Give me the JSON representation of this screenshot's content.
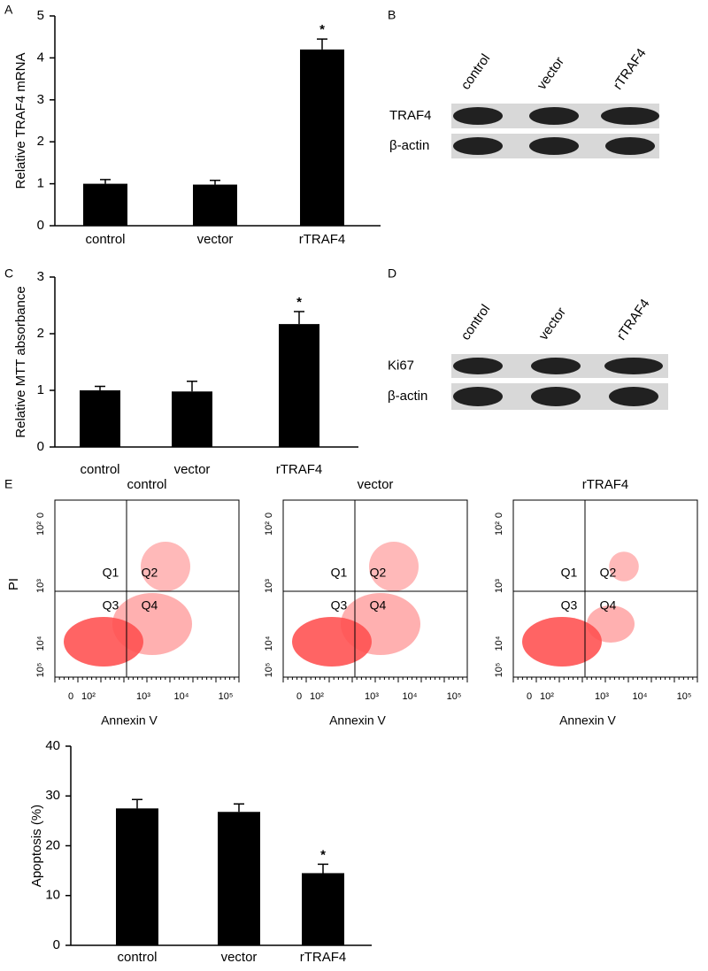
{
  "panels": [
    "A",
    "B",
    "C",
    "D",
    "E"
  ],
  "chart_data": [
    {
      "type": "bar",
      "ylabel": "Relative TRAF4 mRNA",
      "categories": [
        "control",
        "vector",
        "rTRAF4"
      ],
      "values": [
        1.0,
        0.98,
        4.2
      ],
      "errors": [
        0.1,
        0.1,
        0.25
      ],
      "color": "#000000",
      "ylim": [
        0,
        5
      ],
      "yticks": [
        0,
        1,
        2,
        3,
        4,
        5
      ],
      "annotations": [
        {
          "category": "rTRAF4",
          "text": "*"
        }
      ]
    },
    {
      "type": "bar",
      "ylabel": "Relative MTT absorbance",
      "categories": [
        "control",
        "vector",
        "rTRAF4"
      ],
      "values": [
        1.0,
        0.98,
        2.17
      ],
      "errors": [
        0.07,
        0.18,
        0.22
      ],
      "color": "#000000",
      "ylim": [
        0,
        3
      ],
      "yticks": [
        0,
        1,
        2,
        3
      ],
      "annotations": [
        {
          "category": "rTRAF4",
          "text": "*"
        }
      ]
    },
    {
      "type": "bar",
      "ylabel": "Apoptosis (%)",
      "categories": [
        "control",
        "vector",
        "rTRAF4"
      ],
      "values": [
        27.5,
        26.8,
        14.5
      ],
      "errors": [
        1.8,
        1.6,
        1.8
      ],
      "color": "#000000",
      "ylim": [
        0,
        40
      ],
      "yticks": [
        0,
        10,
        20,
        30,
        40
      ],
      "annotations": [
        {
          "category": "rTRAF4",
          "text": "*"
        }
      ]
    }
  ],
  "blots": [
    {
      "lanes": [
        "control",
        "vector",
        "rTRAF4"
      ],
      "rows": [
        "TRAF4",
        "β-actin"
      ]
    },
    {
      "lanes": [
        "control",
        "vector",
        "rTRAF4"
      ],
      "rows": [
        "Ki67",
        "β-actin"
      ]
    }
  ],
  "flow": {
    "titles": [
      "control",
      "vector",
      "rTRAF4"
    ],
    "xlabel": "Annexin V",
    "ylabel": "PI",
    "quadrants": [
      "Q1",
      "Q2",
      "Q3",
      "Q4"
    ],
    "xticks": [
      "0",
      "10²",
      "10³",
      "10⁴",
      "10⁵"
    ],
    "yticks": [
      "0",
      "10²",
      "10³",
      "10⁴",
      "10⁵"
    ]
  }
}
